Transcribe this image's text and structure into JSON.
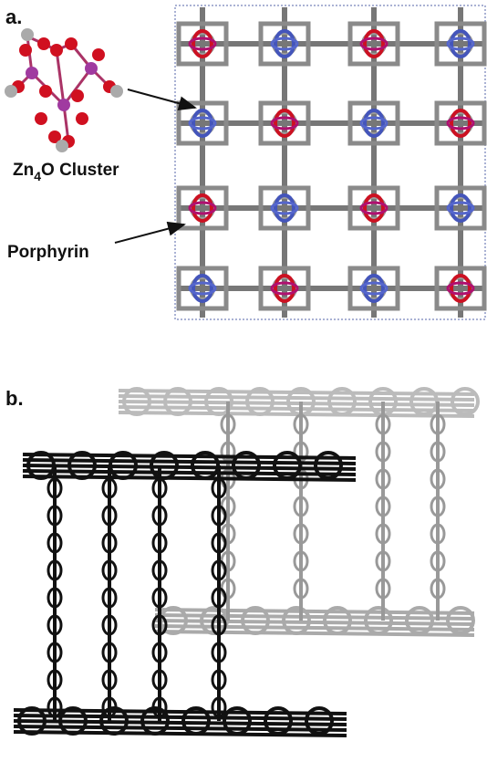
{
  "panel_a": {
    "label": "a.",
    "cluster_label": {
      "base": "Zn",
      "subscript": "4",
      "rest": "O Cluster"
    },
    "porphyrin_label": "Porphyrin"
  },
  "panel_b": {
    "label": "b."
  }
}
